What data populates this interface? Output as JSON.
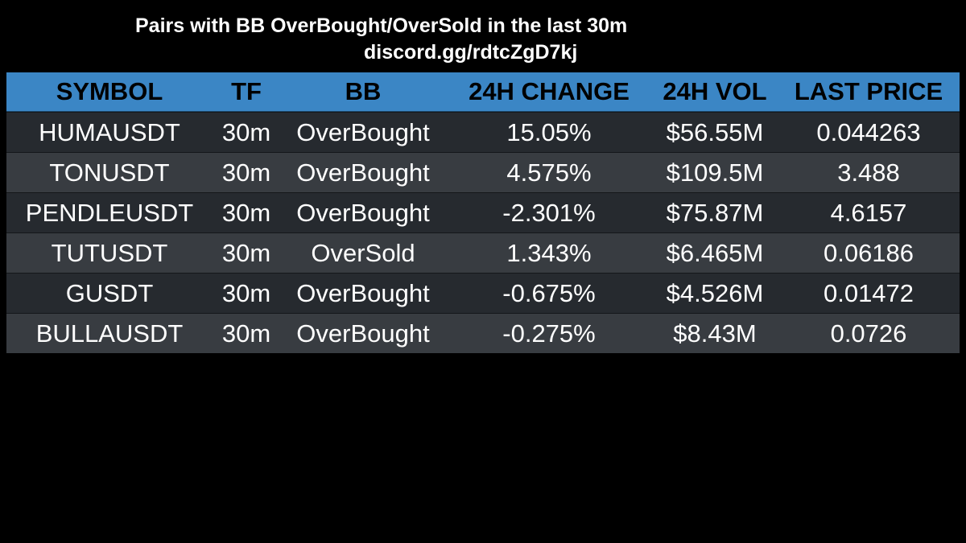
{
  "header": {
    "title": "Pairs with BB OverBought/OverSold in the last 30m",
    "subtitle": "discord.gg/rdtcZgD7kj"
  },
  "colors": {
    "background": "#000000",
    "header_row": "#3b86c5",
    "row_dark": "#262a2f",
    "row_light": "#383c41",
    "text": "#ffffff"
  },
  "table": {
    "columns": [
      "SYMBOL",
      "TF",
      "BB",
      "24H CHANGE",
      "24H VOL",
      "LAST PRICE"
    ],
    "rows": [
      [
        "HUMAUSDT",
        "30m",
        "OverBought",
        "15.05%",
        "$56.55M",
        "0.044263"
      ],
      [
        "TONUSDT",
        "30m",
        "OverBought",
        "4.575%",
        "$109.5M",
        "3.488"
      ],
      [
        "PENDLEUSDT",
        "30m",
        "OverBought",
        "-2.301%",
        "$75.87M",
        "4.6157"
      ],
      [
        "TUTUSDT",
        "30m",
        "OverSold",
        "1.343%",
        "$6.465M",
        "0.06186"
      ],
      [
        "GUSDT",
        "30m",
        "OverBought",
        "-0.675%",
        "$4.526M",
        "0.01472"
      ],
      [
        "BULLAUSDT",
        "30m",
        "OverBought",
        "-0.275%",
        "$8.43M",
        "0.0726"
      ]
    ]
  }
}
